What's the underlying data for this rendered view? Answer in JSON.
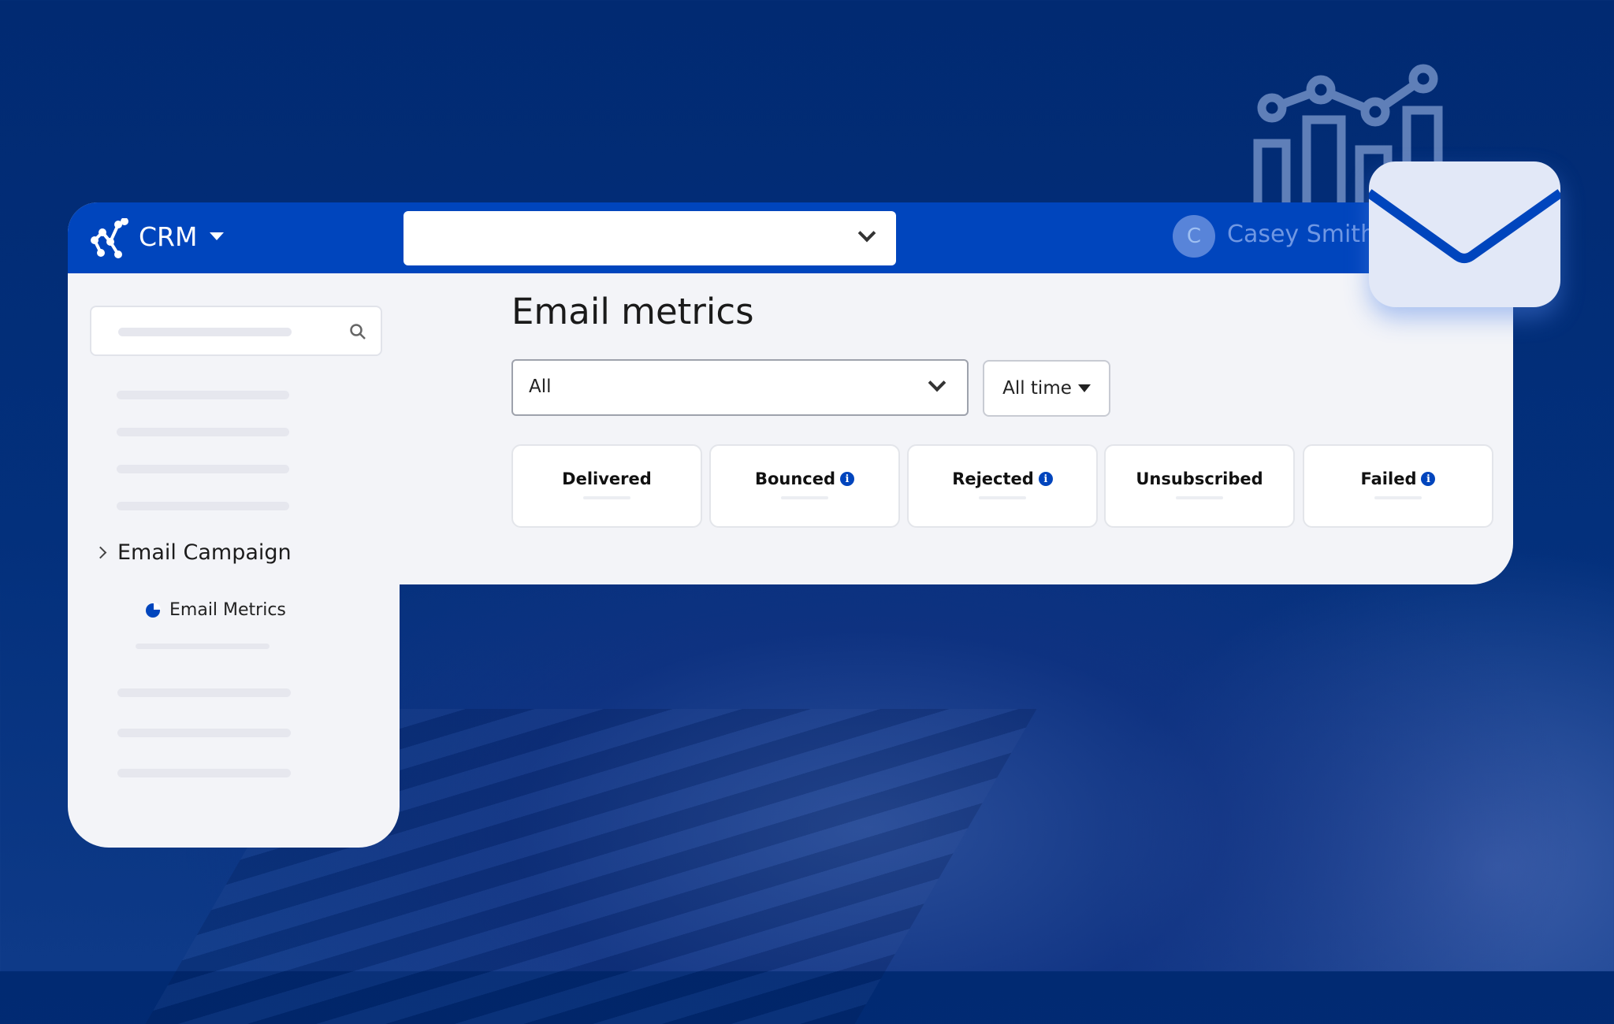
{
  "app": {
    "name": "CRM",
    "user_initial": "C",
    "user_name": "Casey Smith",
    "top_select_value": ""
  },
  "sidebar": {
    "search_placeholder": "",
    "section": "Email Campaign",
    "active_item": "Email Metrics"
  },
  "main": {
    "title": "Email metrics",
    "filter_value": "All",
    "time_filter": "All time",
    "cards": [
      {
        "label": "Delivered",
        "info": false
      },
      {
        "label": "Bounced",
        "info": true
      },
      {
        "label": "Rejected",
        "info": true
      },
      {
        "label": "Unsubscribed",
        "info": false
      },
      {
        "label": "Failed",
        "info": true
      }
    ]
  },
  "colors": {
    "brand": "#0045bd",
    "background": "#012a72",
    "panel": "#f3f4f8"
  }
}
